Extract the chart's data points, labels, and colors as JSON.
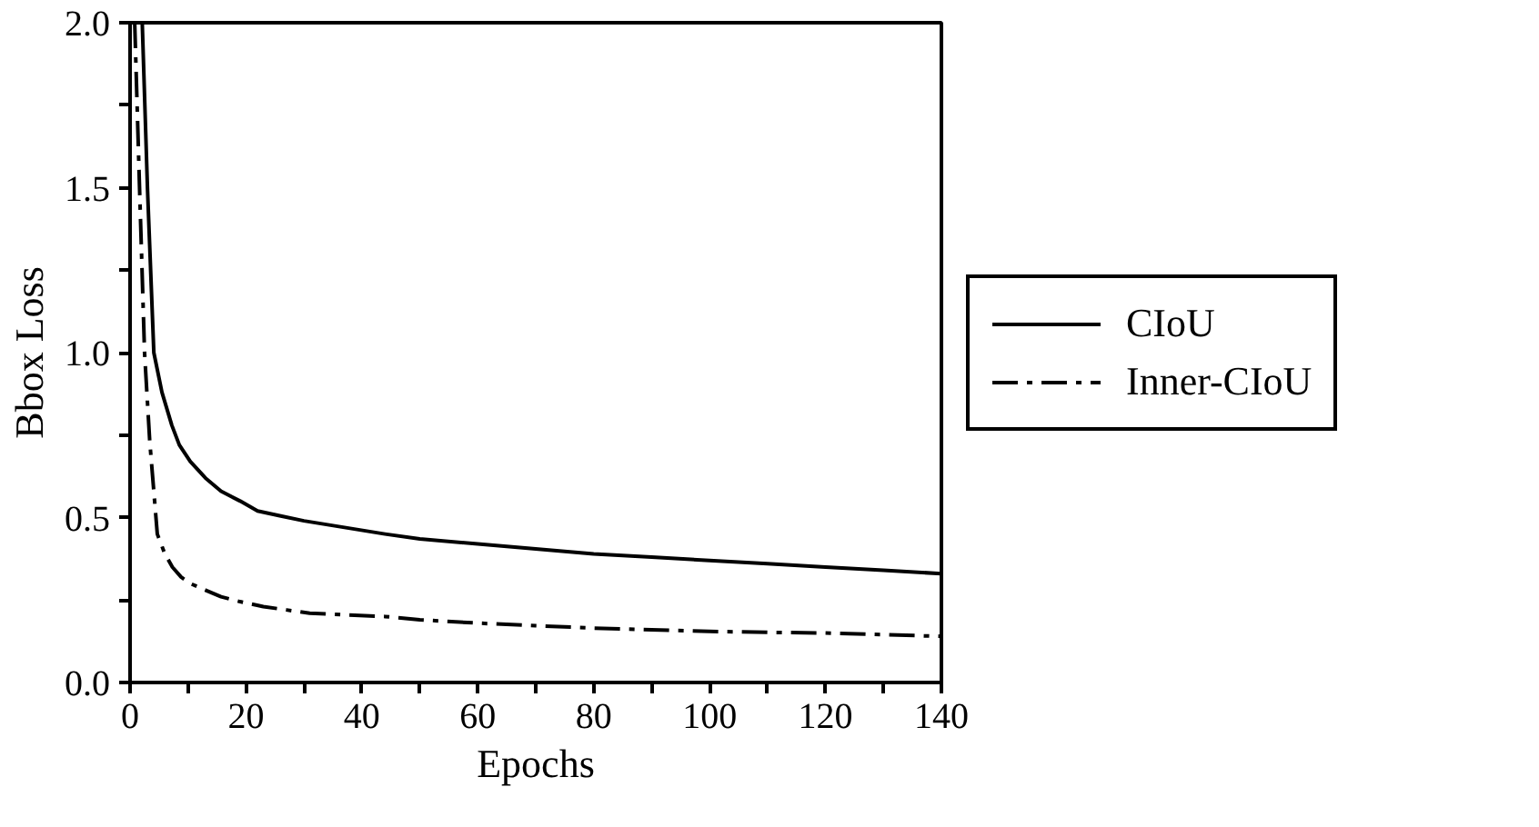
{
  "chart_data": {
    "type": "line",
    "xlabel": "Epochs",
    "ylabel": "Bbox Loss",
    "xlim": [
      0,
      140
    ],
    "ylim": [
      0,
      2.0
    ],
    "xticks": [
      0,
      {
        "value": 10,
        "label": null
      },
      20,
      {
        "value": 30,
        "label": null
      },
      40,
      {
        "value": 50,
        "label": null
      },
      60,
      {
        "value": 70,
        "label": null
      },
      80,
      {
        "value": 90,
        "label": null
      },
      100,
      {
        "value": 110,
        "label": null
      },
      120,
      {
        "value": 130,
        "label": null
      },
      140
    ],
    "yticks": [
      {
        "value": 0,
        "label": "0.0"
      },
      {
        "value": 0.25,
        "label": null
      },
      0.5,
      {
        "value": 0.75,
        "label": null
      },
      {
        "value": 1,
        "label": "1.0"
      },
      {
        "value": 1.25,
        "label": null
      },
      1.5,
      {
        "value": 1.75,
        "label": null
      },
      {
        "value": 2,
        "label": "2.0"
      }
    ],
    "grid": false,
    "legend": "right",
    "marker": "none",
    "series": [
      {
        "name": "CIoU",
        "color": "#000000",
        "line_style": "solid",
        "x": [
          2.1,
          3,
          4.1,
          5.5,
          7.2,
          8.5,
          10.4,
          13,
          15.7,
          19,
          22,
          26,
          30,
          37,
          44,
          50,
          60,
          70,
          80,
          90,
          100,
          110,
          120,
          130,
          140
        ],
        "values": [
          2.0,
          1.5,
          1.0,
          0.88,
          0.78,
          0.72,
          0.67,
          0.62,
          0.58,
          0.55,
          0.52,
          0.505,
          0.49,
          0.47,
          0.45,
          0.435,
          0.42,
          0.405,
          0.39,
          0.38,
          0.37,
          0.36,
          0.35,
          0.34,
          0.33
        ]
      },
      {
        "name": "Inner-CIoU",
        "color": "#000000",
        "line_style": "dashdot",
        "x": [
          0.8,
          1.6,
          2.5,
          3.4,
          4.7,
          6,
          7.3,
          8.8,
          10.4,
          13,
          15.7,
          19,
          23,
          27,
          31,
          37,
          44,
          50,
          60,
          70,
          80,
          90,
          100,
          110,
          120,
          130,
          140
        ],
        "values": [
          2.0,
          1.52,
          1.0,
          0.73,
          0.45,
          0.39,
          0.35,
          0.32,
          0.3,
          0.28,
          0.26,
          0.245,
          0.23,
          0.22,
          0.21,
          0.205,
          0.2,
          0.19,
          0.18,
          0.172,
          0.165,
          0.16,
          0.155,
          0.152,
          0.15,
          0.145,
          0.14
        ]
      }
    ]
  }
}
